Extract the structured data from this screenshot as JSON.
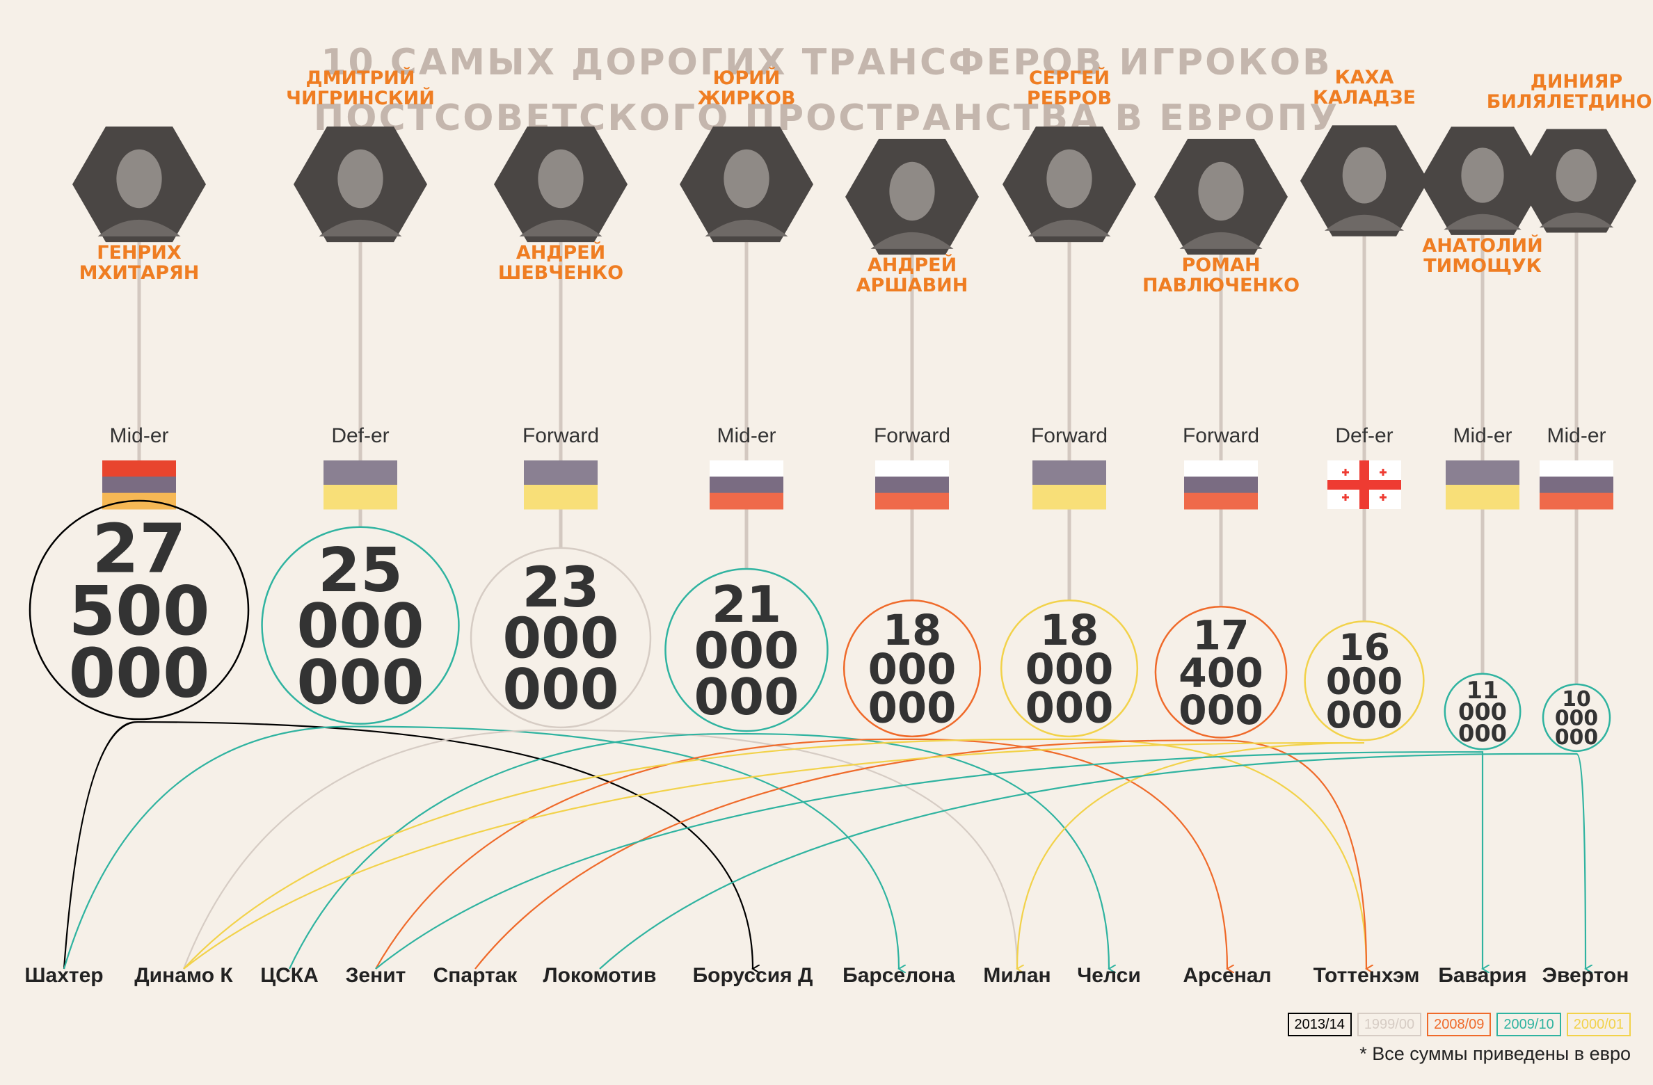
{
  "title": [
    "10 САМЫХ ДОРОГИХ ТРАНСФЕРОВ ИГРОКОВ",
    "ПОСТСОВЕТСКОГО ПРОСТРАНСТВА В ЕВРОПУ"
  ],
  "footnote": "* Все суммы приведены в евро",
  "legend": [
    {
      "label": "2013/14",
      "color": "#000000"
    },
    {
      "label": "1999/00",
      "color": "#d6ccc4"
    },
    {
      "label": "2008/09",
      "color": "#ef6a2a"
    },
    {
      "label": "2009/10",
      "color": "#2fb3a0"
    },
    {
      "label": "2000/01",
      "color": "#f2d24a"
    }
  ],
  "clubs": [
    {
      "id": "shakhtar",
      "name": "Шахтер"
    },
    {
      "id": "dynamo",
      "name": "Динамо К"
    },
    {
      "id": "cska",
      "name": "ЦСКА"
    },
    {
      "id": "zenit",
      "name": "Зенит"
    },
    {
      "id": "spartak",
      "name": "Спартак"
    },
    {
      "id": "lokomotiv",
      "name": "Локомотив"
    },
    {
      "id": "borussia",
      "name": "Боруссия Д"
    },
    {
      "id": "barcelona",
      "name": "Барселона"
    },
    {
      "id": "milan",
      "name": "Милан"
    },
    {
      "id": "chelsea",
      "name": "Челси"
    },
    {
      "id": "arsenal",
      "name": "Арсенал"
    },
    {
      "id": "tottenham",
      "name": "Тоттенхэм"
    },
    {
      "id": "bayern",
      "name": "Бавария"
    },
    {
      "id": "everton",
      "name": "Эвертон"
    }
  ],
  "flag_colors": {
    "armenia": [
      "#e8452e",
      "#7a6c82",
      "#f6b855"
    ],
    "ukraine": [
      "#8a8092",
      "#f8df78"
    ],
    "russia": [
      "#ffffff",
      "#7a6c82",
      "#ef6a4a"
    ],
    "georgia": {
      "field": "#ffffff",
      "cross": "#ee3b32"
    }
  },
  "chart_data": {
    "type": "bubble-timeline",
    "unit": "EUR",
    "transfers": [
      {
        "name": [
          "ГЕНРИХ",
          "МХИТАРЯН"
        ],
        "position": "Mid-er",
        "flag": "armenia",
        "amount": 27500000,
        "amount_lines": [
          "27",
          "500",
          "000"
        ],
        "from": "shakhtar",
        "to": "borussia",
        "season": "2013/14"
      },
      {
        "name": [
          "ДМИТРИЙ",
          "ЧИГРИНСКИЙ"
        ],
        "position": "Def-er",
        "flag": "ukraine",
        "amount": 25000000,
        "amount_lines": [
          "25",
          "000",
          "000"
        ],
        "from": "shakhtar",
        "to": "barcelona",
        "season": "2009/10"
      },
      {
        "name": [
          "АНДРЕЙ",
          "ШЕВЧЕНКО"
        ],
        "position": "Forward",
        "flag": "ukraine",
        "amount": 23000000,
        "amount_lines": [
          "23",
          "000",
          "000"
        ],
        "from": "dynamo",
        "to": "milan",
        "season": "1999/00"
      },
      {
        "name": [
          "ЮРИЙ",
          "ЖИРКОВ"
        ],
        "position": "Mid-er",
        "flag": "russia",
        "amount": 21000000,
        "amount_lines": [
          "21",
          "000",
          "000"
        ],
        "from": "cska",
        "to": "chelsea",
        "season": "2009/10"
      },
      {
        "name": [
          "АНДРЕЙ",
          "АРШАВИН"
        ],
        "position": "Forward",
        "flag": "russia",
        "amount": 18000000,
        "amount_lines": [
          "18",
          "000",
          "000"
        ],
        "from": "zenit",
        "to": "arsenal",
        "season": "2008/09"
      },
      {
        "name": [
          "СЕРГЕЙ",
          "РЕБРОВ"
        ],
        "position": "Forward",
        "flag": "ukraine",
        "amount": 18000000,
        "amount_lines": [
          "18",
          "000",
          "000"
        ],
        "from": "dynamo",
        "to": "tottenham",
        "season": "2000/01"
      },
      {
        "name": [
          "РОМАН",
          "ПАВЛЮЧЕНКО"
        ],
        "position": "Forward",
        "flag": "russia",
        "amount": 17400000,
        "amount_lines": [
          "17",
          "400",
          "000"
        ],
        "from": "spartak",
        "to": "tottenham",
        "season": "2008/09"
      },
      {
        "name": [
          "КАХА",
          "КАЛАДЗЕ"
        ],
        "position": "Def-er",
        "flag": "georgia",
        "amount": 16000000,
        "amount_lines": [
          "16",
          "000",
          "000"
        ],
        "from": "dynamo",
        "to": "milan",
        "season": "2000/01"
      },
      {
        "name": [
          "АНАТОЛИЙ",
          "ТИМОЩУК"
        ],
        "position": "Mid-er",
        "flag": "ukraine",
        "amount": 11000000,
        "amount_lines": [
          "11",
          "000",
          "000"
        ],
        "from": "zenit",
        "to": "bayern",
        "season": "2009/10"
      },
      {
        "name": [
          "ДИНИЯР",
          "БИЛЯЛЕТДИНОВ"
        ],
        "position": "Mid-er",
        "flag": "russia",
        "amount": 10000000,
        "amount_lines": [
          "10",
          "000",
          "000"
        ],
        "from": "lokomotiv",
        "to": "everton",
        "season": "2009/10"
      }
    ]
  }
}
